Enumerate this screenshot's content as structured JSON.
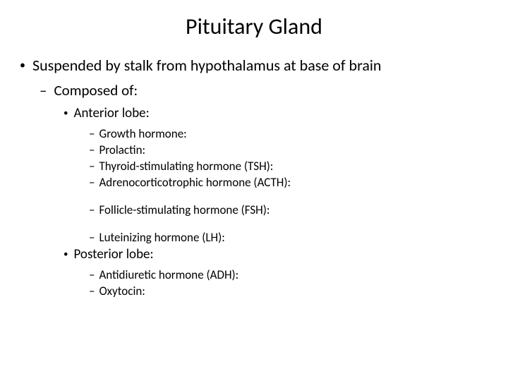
{
  "title": "Pituitary Gland",
  "level1": {
    "text": "Suspended by stalk from hypothalamus at base of brain"
  },
  "level2": {
    "text": "Composed of:"
  },
  "anterior": {
    "label": "Anterior lobe:",
    "items": {
      "gh": "Growth hormone:",
      "prolactin": "Prolactin:",
      "tsh": "Thyroid-stimulating hormone (TSH):",
      "acth": "Adrenocorticotrophic hormone (ACTH):",
      "fsh": "Follicle-stimulating hormone (FSH):",
      "lh": "Luteinizing hormone (LH):"
    }
  },
  "posterior": {
    "label": "Posterior lobe:",
    "items": {
      "adh": "Antidiuretic hormone (ADH):",
      "oxytocin": "Oxytocin:"
    }
  },
  "markers": {
    "bullet": "•",
    "dash": "–"
  },
  "styling": {
    "background_color": "#ffffff",
    "text_color": "#000000",
    "title_fontsize": 32,
    "l1_fontsize": 22,
    "l2_fontsize": 21,
    "l3_fontsize": 19,
    "l4_fontsize": 17,
    "font_family": "Calibri"
  }
}
